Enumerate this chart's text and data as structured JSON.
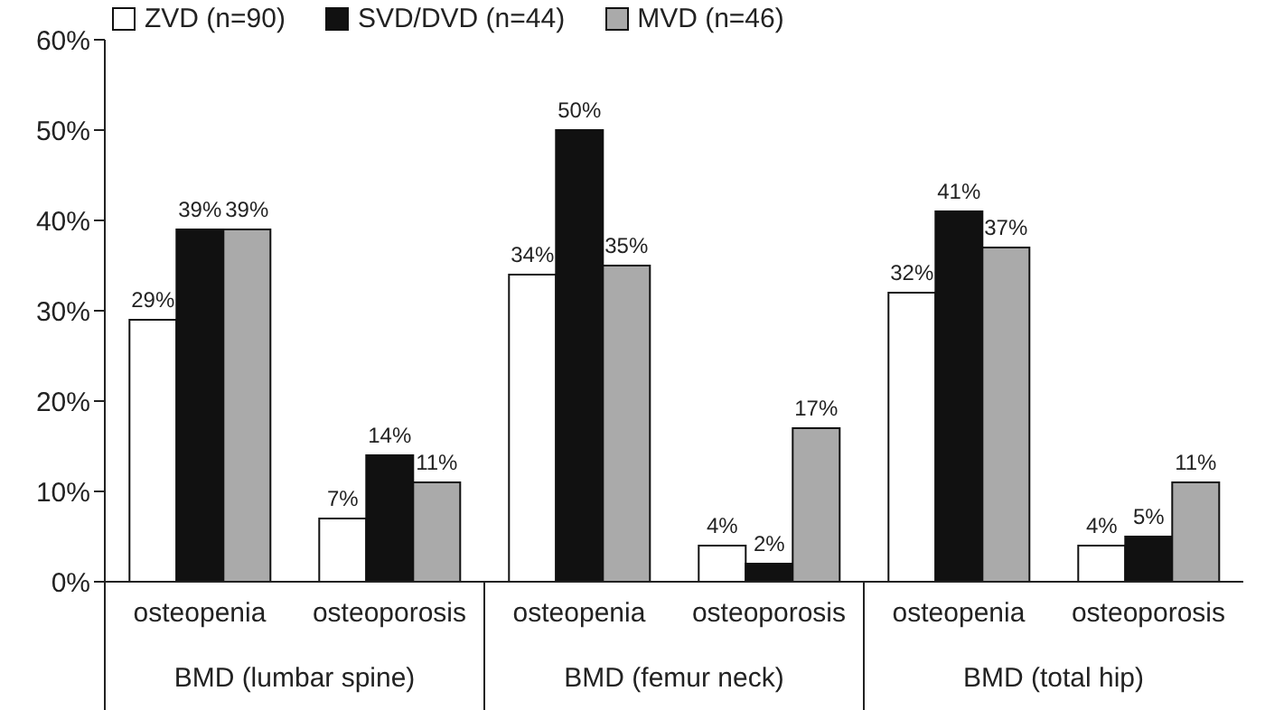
{
  "chart_data": {
    "type": "bar",
    "categories": [
      "osteopenia",
      "osteoporosis",
      "osteopenia",
      "osteoporosis",
      "osteopenia",
      "osteoporosis"
    ],
    "series": [
      {
        "name": "ZVD (n=90)",
        "color": "#ffffff",
        "values": [
          29,
          7,
          34,
          4,
          32,
          4
        ],
        "value_labels": [
          "29%",
          "7%",
          "34%",
          "4%",
          "32%",
          "4%"
        ]
      },
      {
        "name": "SVD/DVD (n=44)",
        "color": "#111111",
        "values": [
          39,
          14,
          50,
          2,
          41,
          5
        ],
        "value_labels": [
          "39%",
          "14%",
          "50%",
          "2%",
          "41%",
          "5%"
        ]
      },
      {
        "name": "MVD (n=46)",
        "color": "#aaaaaa",
        "values": [
          39,
          11,
          35,
          17,
          37,
          11
        ],
        "value_labels": [
          "39%",
          "11%",
          "35%",
          "17%",
          "37%",
          "11%"
        ]
      }
    ],
    "annotations": [
      "BMD (lumbar spine)",
      "BMD (femur neck)",
      "BMD (total hip)"
    ],
    "ylim": [
      0,
      60
    ],
    "yticks": [
      {
        "value": 0,
        "label": "0%"
      },
      {
        "value": 10,
        "label": "10%"
      },
      {
        "value": 20,
        "label": "20%"
      },
      {
        "value": 30,
        "label": "30%"
      },
      {
        "value": 40,
        "label": "40%"
      },
      {
        "value": 50,
        "label": "50%"
      },
      {
        "value": 60,
        "label": "60%"
      }
    ],
    "grid": false,
    "legend": "top left"
  }
}
